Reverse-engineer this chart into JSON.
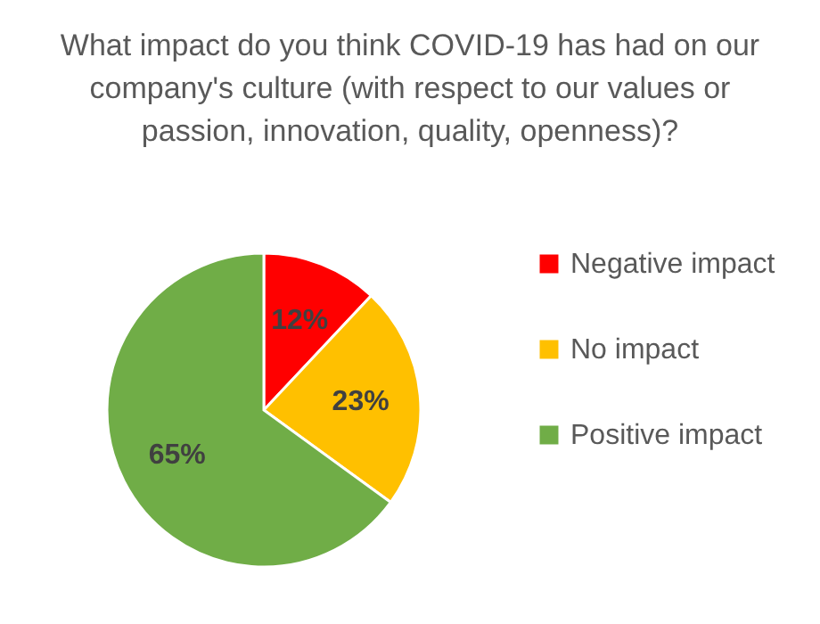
{
  "chart_data": {
    "type": "pie",
    "title": "What impact do you think COVID-19 has had on our company's culture (with respect to our values or passion, innovation, quality, openness)?",
    "categories": [
      "Negative impact",
      "No impact",
      "Positive impact"
    ],
    "values": [
      12,
      23,
      65
    ],
    "colors": [
      "#ff0000",
      "#ffc000",
      "#70ad47"
    ],
    "value_labels": [
      "12%",
      "23%",
      "65%"
    ],
    "legend": "right"
  }
}
